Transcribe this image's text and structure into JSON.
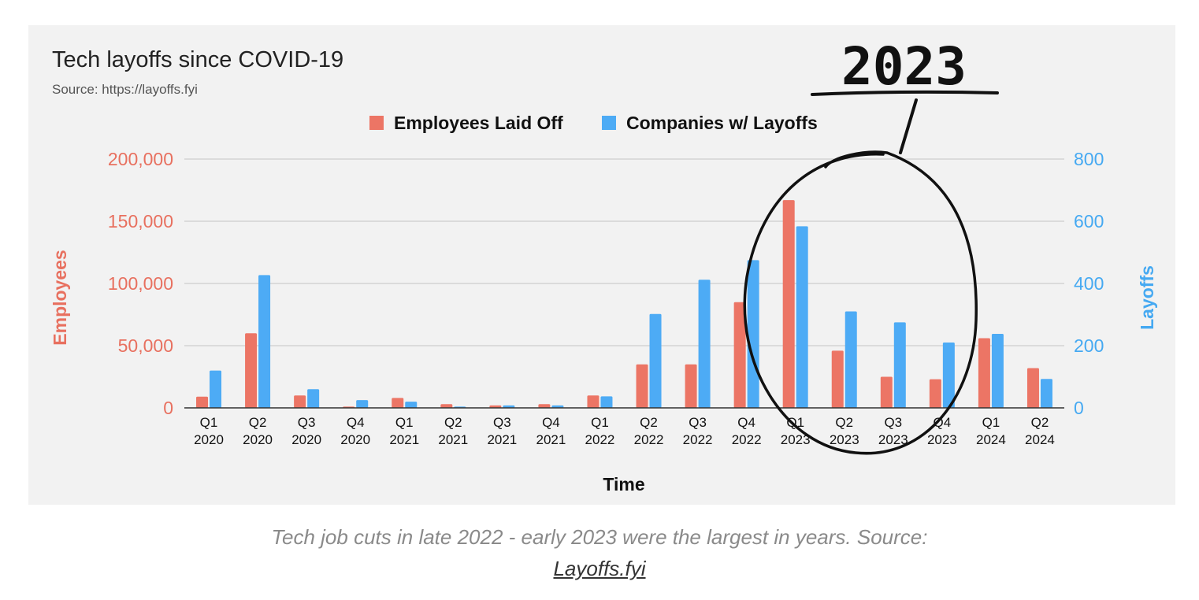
{
  "chart_data": {
    "type": "bar",
    "title": "Tech layoffs since COVID-19",
    "subtitle": "Source: https://layoffs.fyi",
    "categories": [
      [
        "Q1",
        "2020"
      ],
      [
        "Q2",
        "2020"
      ],
      [
        "Q3",
        "2020"
      ],
      [
        "Q4",
        "2020"
      ],
      [
        "Q1",
        "2021"
      ],
      [
        "Q2",
        "2021"
      ],
      [
        "Q3",
        "2021"
      ],
      [
        "Q4",
        "2021"
      ],
      [
        "Q1",
        "2022"
      ],
      [
        "Q2",
        "2022"
      ],
      [
        "Q3",
        "2022"
      ],
      [
        "Q4",
        "2022"
      ],
      [
        "Q1",
        "2023"
      ],
      [
        "Q2",
        "2023"
      ],
      [
        "Q3",
        "2023"
      ],
      [
        "Q4",
        "2023"
      ],
      [
        "Q1",
        "2024"
      ],
      [
        "Q2",
        "2024"
      ]
    ],
    "series": [
      {
        "name": "Employees Laid Off",
        "axis": "left",
        "color": "#ec7565",
        "values": [
          9000,
          60000,
          10000,
          1000,
          8000,
          3000,
          2000,
          3000,
          10000,
          35000,
          35000,
          85000,
          167000,
          46000,
          25000,
          23000,
          56000,
          32000
        ]
      },
      {
        "name": "Companies w/ Layoffs",
        "axis": "right",
        "color": "#4dabf5",
        "values": [
          120,
          427,
          60,
          25,
          20,
          4,
          8,
          8,
          37,
          302,
          412,
          475,
          584,
          310,
          275,
          210,
          238,
          93
        ]
      }
    ],
    "xlabel": "Time",
    "ylabel": "Employees",
    "y2label": "Layoffs",
    "ylim": [
      0,
      200000
    ],
    "y2lim": [
      0,
      800
    ],
    "yticks": [
      "0",
      "50,000",
      "100,000",
      "150,000",
      "200,000"
    ],
    "y2ticks": [
      "0",
      "200",
      "400",
      "600",
      "800"
    ],
    "grid": true,
    "legend": "top",
    "annotation": {
      "text": "2023",
      "circled_categories": "Q1 2023 – Q4 2023"
    }
  },
  "caption": {
    "text": "Tech job cuts in late 2022 - early 2023 were the largest in years. Source:",
    "link": "Layoffs.fyi"
  }
}
